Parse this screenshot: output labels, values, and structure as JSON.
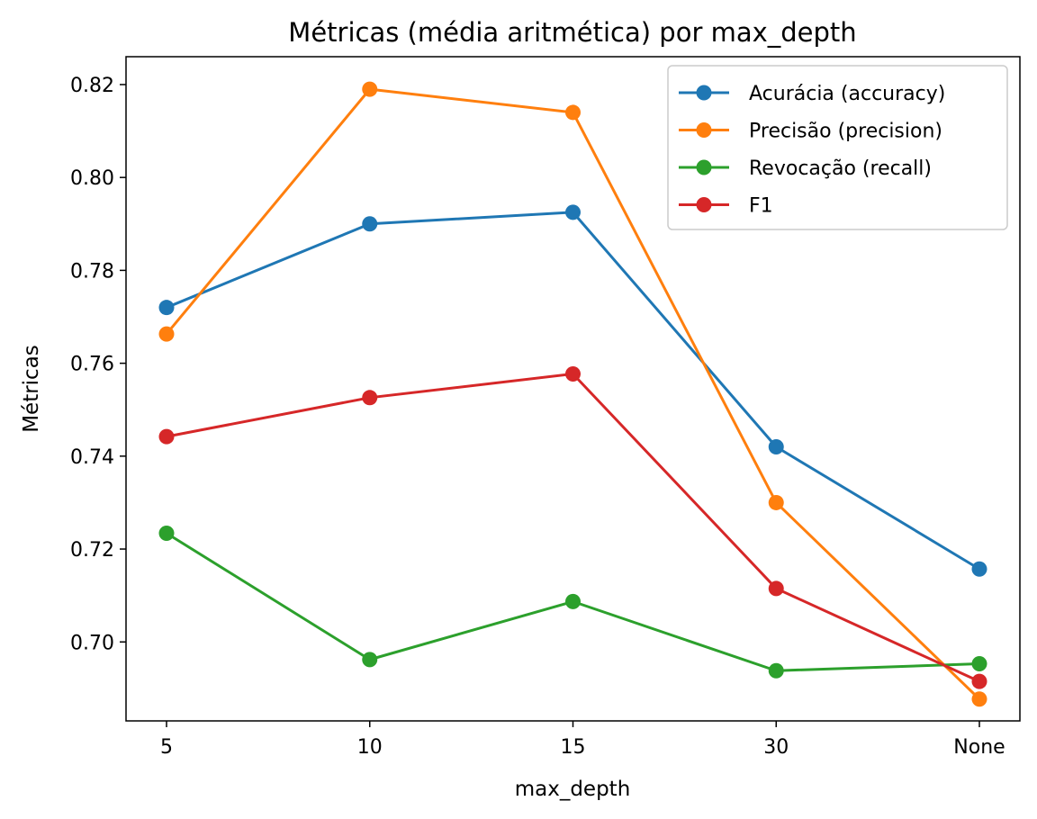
{
  "chart_data": {
    "type": "line",
    "title": "Métricas (média aritmética) por max_depth",
    "xlabel": "max_depth",
    "ylabel": "Métricas",
    "categories": [
      "5",
      "10",
      "15",
      "30",
      "None"
    ],
    "ylim": [
      0.683,
      0.826
    ],
    "yticks": [
      "0.70",
      "0.72",
      "0.74",
      "0.76",
      "0.78",
      "0.80",
      "0.82"
    ],
    "grid": false,
    "legend_position": "top-right",
    "series": [
      {
        "name": "Acurácia (accuracy)",
        "color": "#1f77b4",
        "values": [
          0.772,
          0.79,
          0.7925,
          0.742,
          0.7157
        ]
      },
      {
        "name": "Precisão (precision)",
        "color": "#ff7f0e",
        "values": [
          0.7663,
          0.819,
          0.814,
          0.73,
          0.6877
        ]
      },
      {
        "name": "Revocação (recall)",
        "color": "#2ca02c",
        "values": [
          0.7234,
          0.6962,
          0.7087,
          0.6938,
          0.6953
        ]
      },
      {
        "name": "F1",
        "color": "#d62728",
        "values": [
          0.7442,
          0.7526,
          0.7577,
          0.7115,
          0.6915
        ]
      }
    ]
  }
}
